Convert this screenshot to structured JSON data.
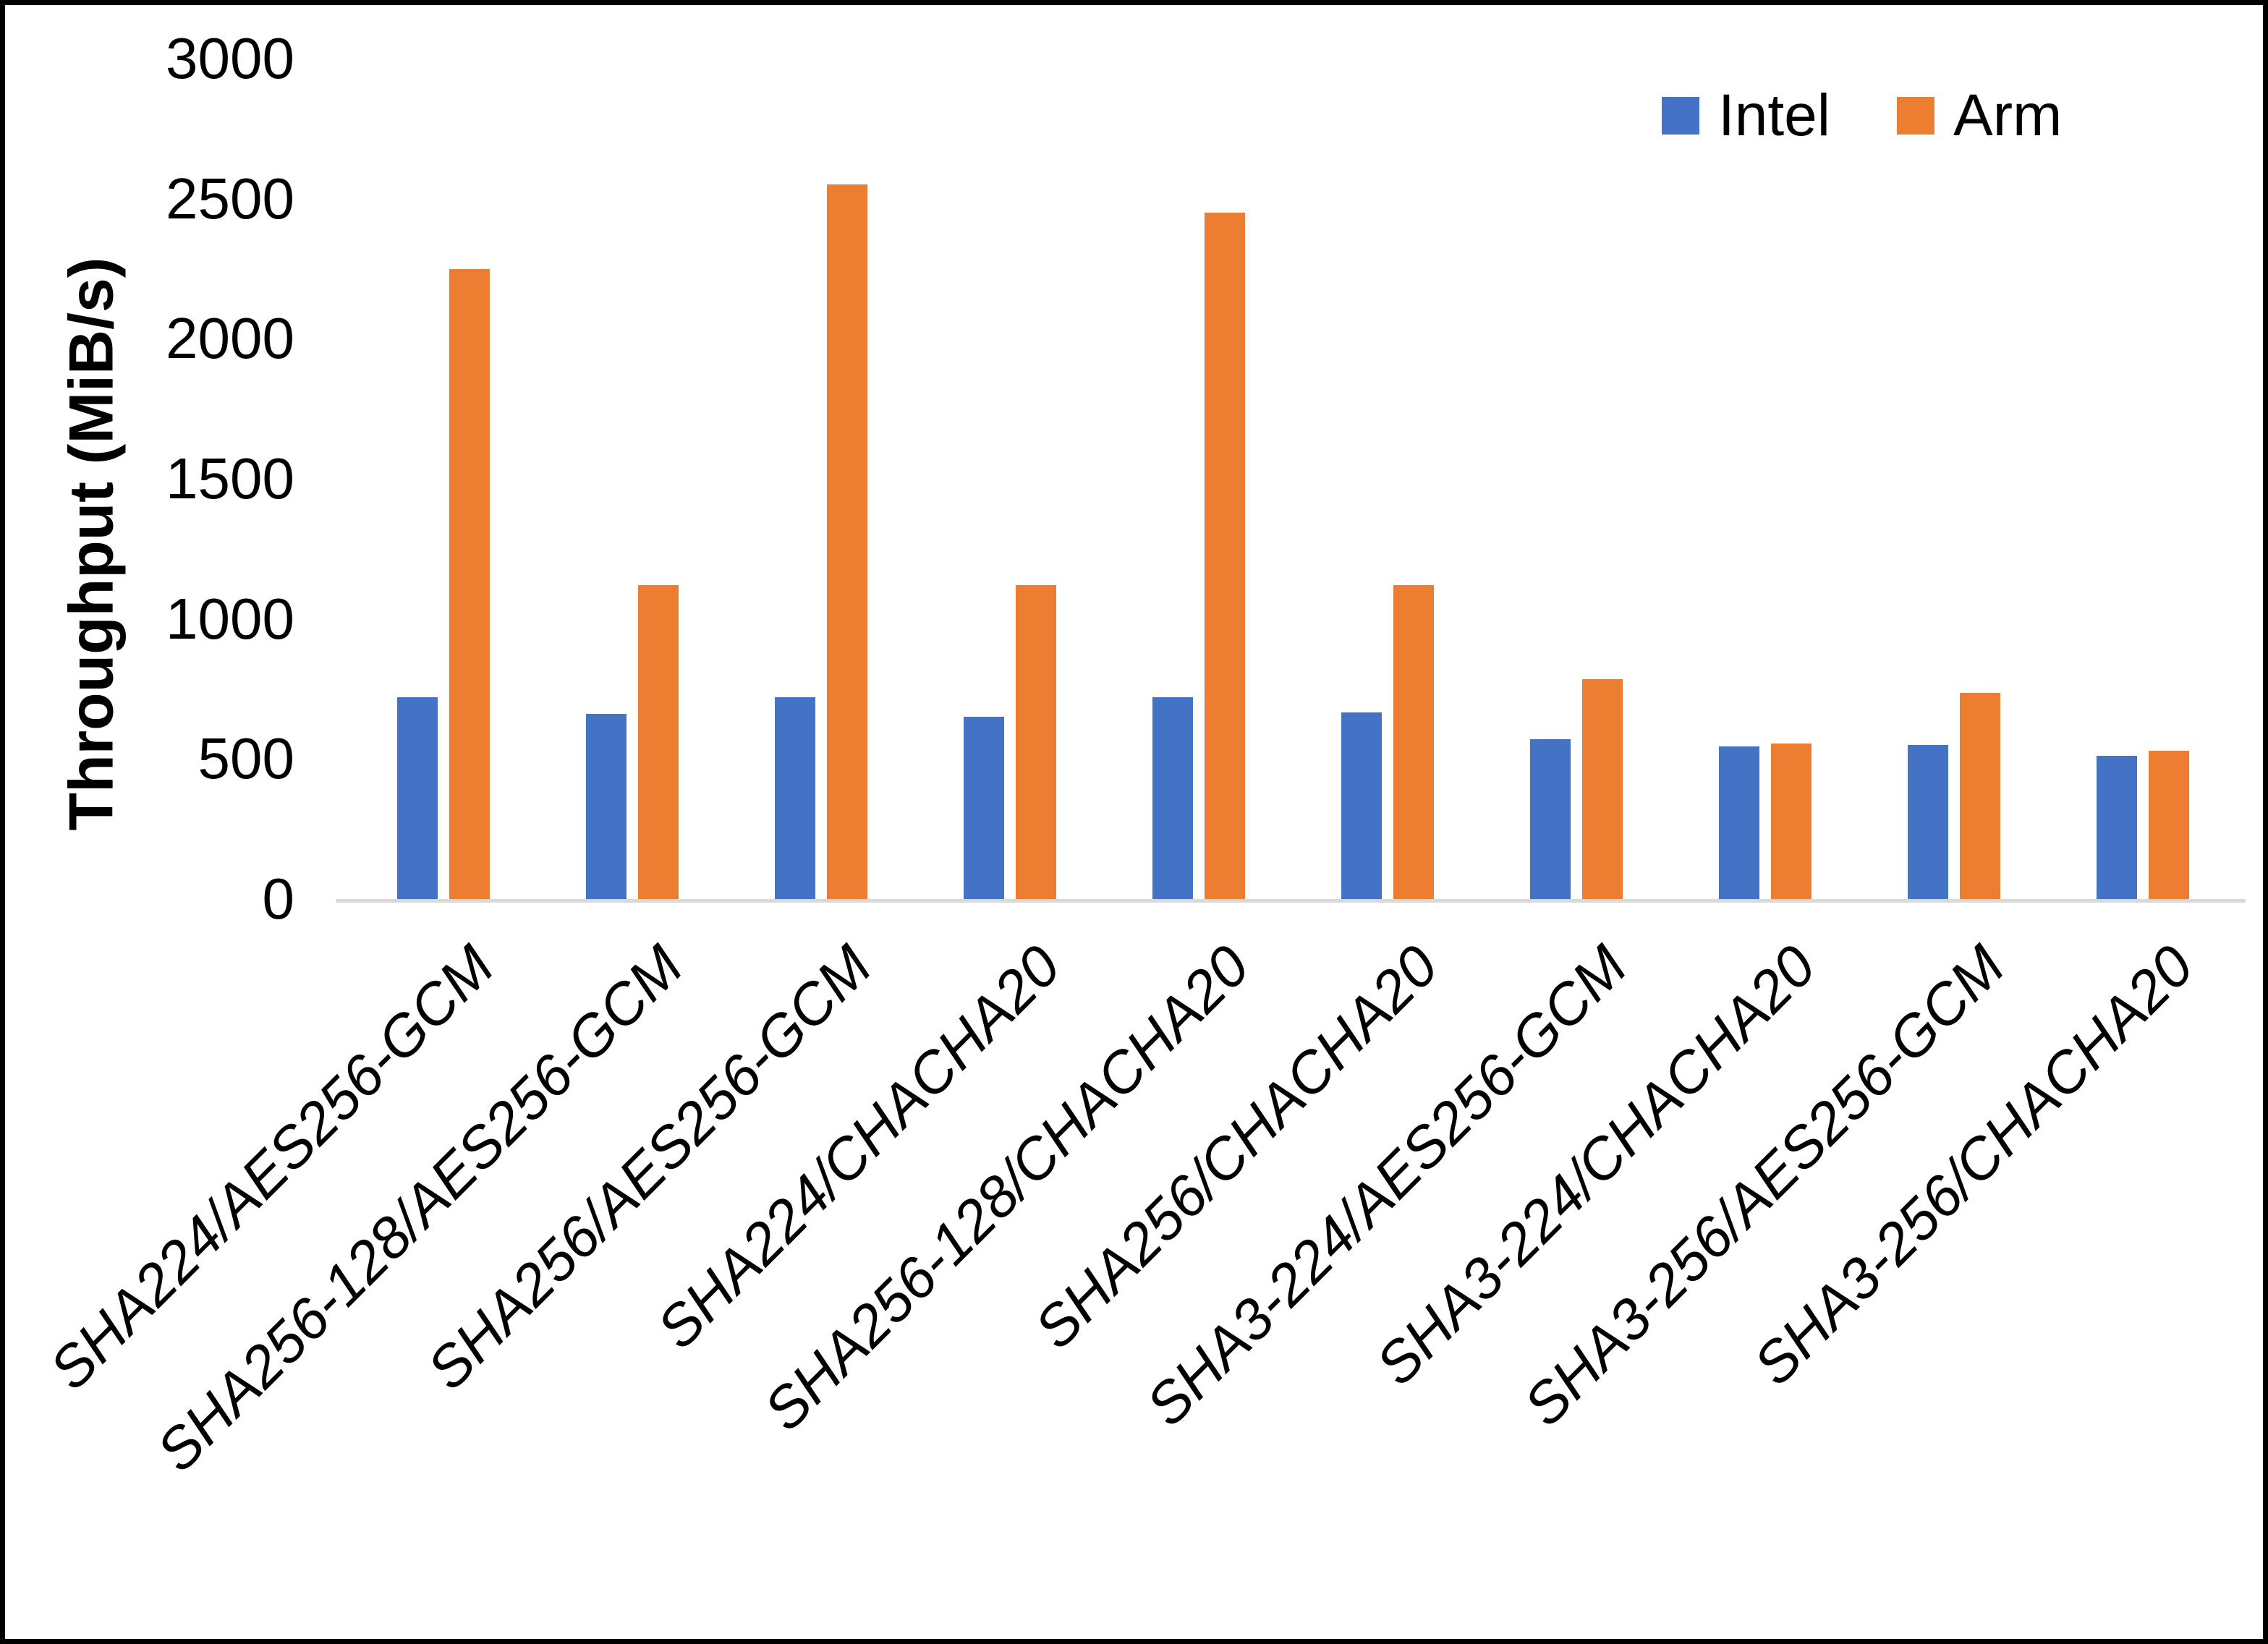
{
  "chart_data": {
    "type": "bar",
    "title": "",
    "xlabel": "",
    "ylabel": "Throughput (MiB/s)",
    "ylim": [
      0,
      3000
    ],
    "ytick_step": 500,
    "grid": false,
    "legend_position": "top-right",
    "category_label_rotation_deg": 45,
    "categories": [
      "SHA224/AES256-GCM",
      "SHA256-128/AES256-GCM",
      "SHA256/AES256-GCM",
      "SHA224/CHACHA20",
      "SHA256-128/CHACHA20",
      "SHA256/CHACHA20",
      "SHA3-224/AES256-GCM",
      "SHA3-224/CHACHA20",
      "SHA3-256/AES256-GCM",
      "SHA3-256/CHACHA20"
    ],
    "series": [
      {
        "name": "Intel",
        "color": "#4472C4",
        "values": [
          720,
          660,
          720,
          650,
          720,
          665,
          570,
          545,
          550,
          510
        ]
      },
      {
        "name": "Arm",
        "color": "#ED7D31",
        "values": [
          2250,
          1120,
          2550,
          1120,
          2450,
          1120,
          785,
          555,
          735,
          530
        ]
      }
    ]
  },
  "y_axis": {
    "title": "Throughput (MiB/s)",
    "tick_labels": [
      "0",
      "500",
      "1000",
      "1500",
      "2000",
      "2500",
      "3000"
    ]
  },
  "legend": {
    "items": [
      {
        "label": "Intel",
        "color": "#4472C4"
      },
      {
        "label": "Arm",
        "color": "#ED7D31"
      }
    ]
  },
  "style": {
    "axis_line_color": "#D9D9D9",
    "frame_color": "#000000",
    "background": "#FFFFFF",
    "text_color": "#000000"
  }
}
